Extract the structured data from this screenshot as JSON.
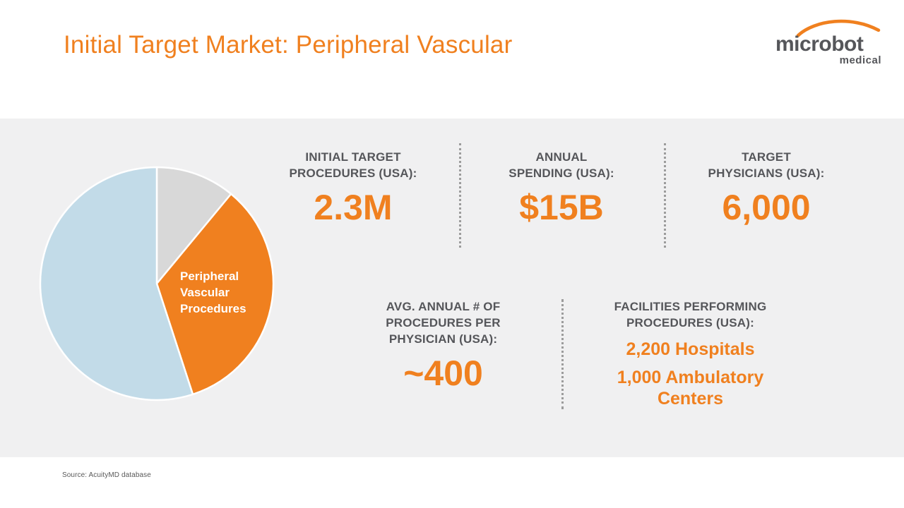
{
  "header": {
    "title": "Initial Target Market: Peripheral Vascular",
    "logo": {
      "primary": "microbot",
      "secondary": "medical"
    }
  },
  "panel": {
    "stats_row1": [
      {
        "lines": [
          "INITIAL TARGET",
          "PROCEDURES (USA):"
        ],
        "value": "2.3M"
      },
      {
        "lines": [
          "ANNUAL",
          "SPENDING (USA):"
        ],
        "value": "$15B"
      },
      {
        "lines": [
          "TARGET",
          "PHYSICIANS (USA):"
        ],
        "value": "6,000"
      }
    ],
    "stats_row2": {
      "left": {
        "lines": [
          "AVG. ANNUAL # OF",
          "PROCEDURES PER",
          "PHYSICIAN (USA):"
        ],
        "value": "~400"
      },
      "right": {
        "lines": [
          "FACILITIES PERFORMING",
          "PROCEDURES (USA):"
        ],
        "values": [
          "2,200 Hospitals",
          "1,000 Ambulatory Centers"
        ]
      }
    }
  },
  "footer": {
    "source": "Source: AcuityMD database"
  },
  "chart_data": {
    "type": "pie",
    "title": "",
    "legend": "none",
    "start_angle_deg": -90,
    "direction": "clockwise",
    "values_unit": "percent (estimated from slice angles)",
    "slices": [
      {
        "label": "",
        "value": 11,
        "color": "#D8D8D8"
      },
      {
        "label": "Peripheral Vascular Procedures",
        "value": 34,
        "color": "#F0801F",
        "label_color": "#FFFFFF"
      },
      {
        "label": "",
        "value": 55,
        "color": "#C2DBE8"
      }
    ]
  },
  "colors": {
    "accent_orange": "#F0801F",
    "text_dark_gray": "#55565A",
    "panel_background": "#F0F0F1",
    "divider_gray": "#9C9C9C",
    "pie_blue": "#C2DBE8",
    "pie_gray": "#D8D8D8"
  }
}
